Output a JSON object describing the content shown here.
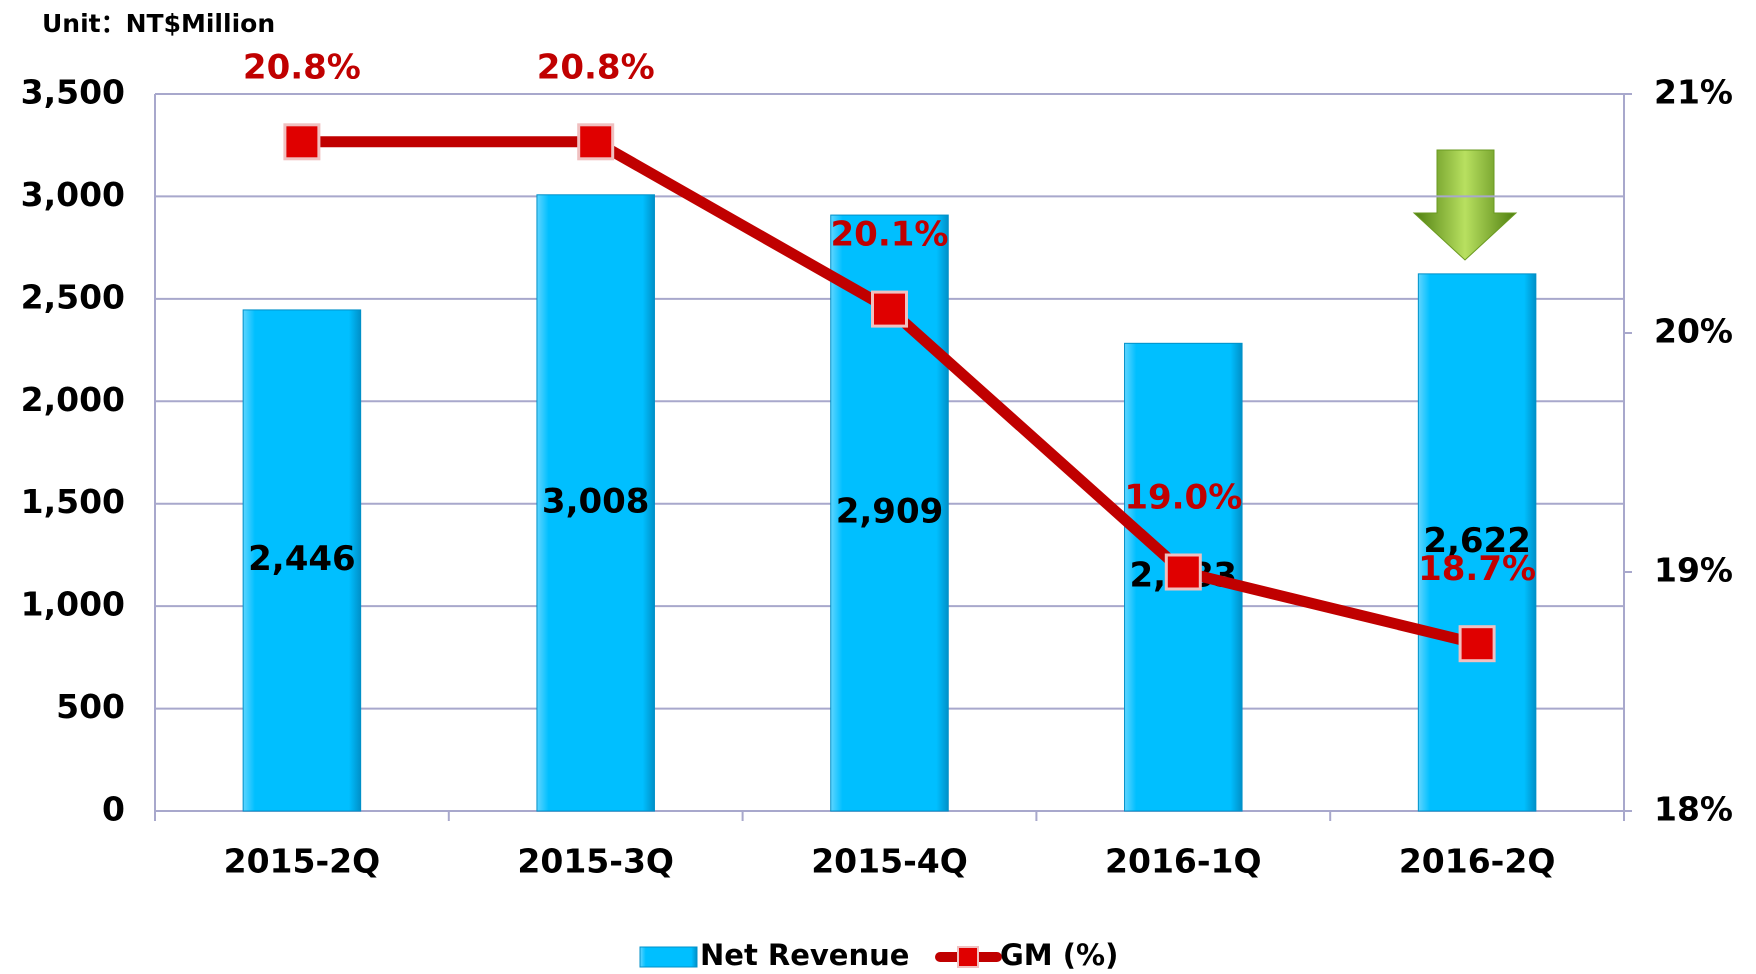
{
  "chart_data": {
    "type": "bar_line",
    "annotation": "Unit：NT$Million",
    "categories": [
      "2015-2Q",
      "2015-3Q",
      "2015-4Q",
      "2016-1Q",
      "2016-2Q"
    ],
    "series": [
      {
        "name": "Net Revenue",
        "type": "bar",
        "color": "#00bfff",
        "values": [
          2446,
          3008,
          2909,
          2283,
          2622
        ],
        "value_labels": [
          "2,446",
          "3,008",
          "2,909",
          "2,283",
          "2,622"
        ]
      },
      {
        "name": "GM (%)",
        "type": "line",
        "axis": "y2",
        "color": "#c00000",
        "values": [
          20.8,
          20.8,
          20.1,
          19.0,
          18.7
        ],
        "value_labels": [
          "20.8%",
          "20.8%",
          "20.1%",
          "19.0%",
          "18.7%"
        ]
      }
    ],
    "ylim": [
      0,
      3500
    ],
    "yticks": [
      0,
      500,
      {
        "value": 1000,
        "label": "1,000"
      },
      {
        "value": 1500,
        "label": "1,500"
      },
      {
        "value": 2000,
        "label": "2,000"
      },
      {
        "value": 2500,
        "label": "2,500"
      },
      {
        "value": 3000,
        "label": "3,000"
      },
      {
        "value": 3500,
        "label": "3,500"
      }
    ],
    "y2lim": [
      18,
      21
    ],
    "y2ticks": [
      {
        "value": 18,
        "label": "18%"
      },
      {
        "value": 19,
        "label": "19%"
      },
      {
        "value": 20,
        "label": "20%"
      },
      {
        "value": 21,
        "label": "21%"
      }
    ],
    "grid": true,
    "legend": "bottom"
  }
}
